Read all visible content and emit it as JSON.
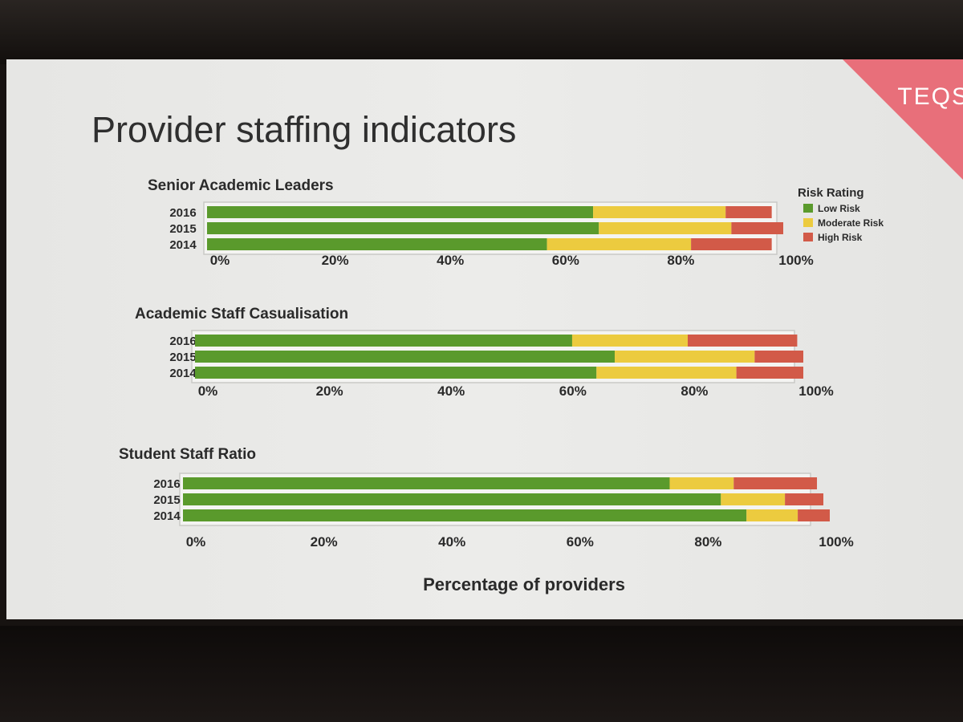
{
  "slide": {
    "title": "Provider staffing indicators",
    "brand": "TEQS"
  },
  "colors": {
    "low": "#5a9a2c",
    "moderate": "#eccb3f",
    "high": "#d25a48",
    "brand": "#e86f7a"
  },
  "legend": {
    "title": "Risk Rating",
    "items": [
      {
        "label": "Low Risk",
        "color": "#5a9a2c"
      },
      {
        "label": "Moderate Risk",
        "color": "#eccb3f"
      },
      {
        "label": "High Risk",
        "color": "#d25a48"
      }
    ]
  },
  "chart_data": [
    {
      "type": "bar",
      "orientation": "horizontal",
      "stacked": true,
      "title": "Senior Academic Leaders",
      "categories": [
        "2016",
        "2015",
        "2014"
      ],
      "series": [
        {
          "name": "Low Risk",
          "values": [
            67,
            68,
            59
          ]
        },
        {
          "name": "Moderate Risk",
          "values": [
            23,
            23,
            25
          ]
        },
        {
          "name": "High Risk",
          "values": [
            8,
            9,
            14
          ]
        }
      ],
      "xlim": [
        0,
        100
      ],
      "ticks": [
        "0%",
        "20%",
        "40%",
        "60%",
        "80%",
        "100%"
      ],
      "legend_position": "right"
    },
    {
      "type": "bar",
      "orientation": "horizontal",
      "stacked": true,
      "title": "Academic Staff Casualisation",
      "categories": [
        "2016",
        "2015",
        "2014"
      ],
      "series": [
        {
          "name": "Low Risk",
          "values": [
            62,
            69,
            66
          ]
        },
        {
          "name": "Moderate Risk",
          "values": [
            19,
            23,
            23
          ]
        },
        {
          "name": "High Risk",
          "values": [
            18,
            8,
            11
          ]
        }
      ],
      "xlim": [
        0,
        100
      ],
      "ticks": [
        "0%",
        "20%",
        "40%",
        "60%",
        "80%",
        "100%"
      ]
    },
    {
      "type": "bar",
      "orientation": "horizontal",
      "stacked": true,
      "title": "Student Staff Ratio",
      "categories": [
        "2016",
        "2015",
        "2014"
      ],
      "series": [
        {
          "name": "Low Risk",
          "values": [
            76,
            84,
            88
          ]
        },
        {
          "name": "Moderate Risk",
          "values": [
            10,
            10,
            8
          ]
        },
        {
          "name": "High Risk",
          "values": [
            13,
            6,
            5
          ]
        }
      ],
      "xlim": [
        0,
        100
      ],
      "ticks": [
        "0%",
        "20%",
        "40%",
        "60%",
        "80%",
        "100%"
      ],
      "xlabel": "Percentage of providers"
    }
  ]
}
